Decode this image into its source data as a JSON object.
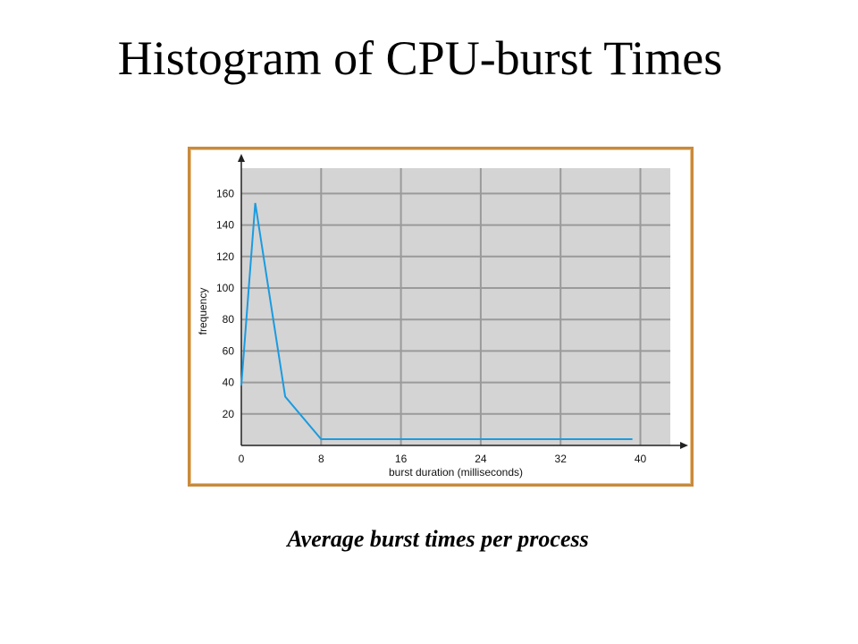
{
  "slide": {
    "title": "Histogram of CPU-burst Times",
    "caption": "Average burst times per process"
  },
  "colors": {
    "plot_background": "#d4d4d4",
    "grid": "#9a9a9a",
    "line": "#1a9be0",
    "frame_border": "#c98a3c"
  },
  "chart_data": {
    "type": "line",
    "title": "",
    "xlabel": "burst duration (milliseconds)",
    "ylabel": "frequency",
    "xlim": [
      0,
      43
    ],
    "ylim": [
      0,
      175
    ],
    "x_ticks": [
      0,
      8,
      16,
      24,
      32,
      40
    ],
    "y_ticks": [
      20,
      40,
      60,
      80,
      100,
      120,
      140,
      160
    ],
    "grid": true,
    "series": [
      {
        "x": [
          0,
          1.4,
          4.4,
          8,
          39.2
        ],
        "y": [
          38,
          154,
          31,
          4,
          4
        ]
      }
    ]
  }
}
